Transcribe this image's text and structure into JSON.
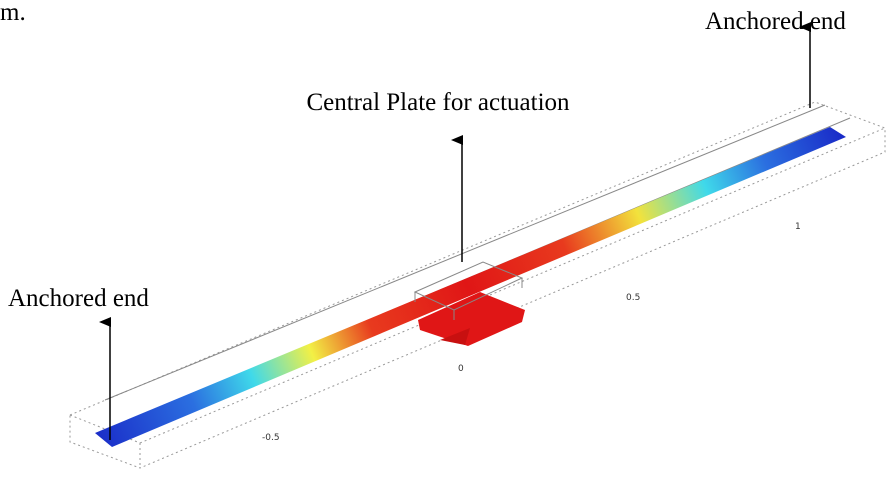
{
  "fragment": "m.",
  "annotations": [
    {
      "label": "Anchored end"
    },
    {
      "label": "Central Plate for actuation"
    },
    {
      "label": "Anchored end"
    }
  ],
  "axis_labels": [
    "-0.5",
    "0",
    "0.5",
    "1"
  ]
}
